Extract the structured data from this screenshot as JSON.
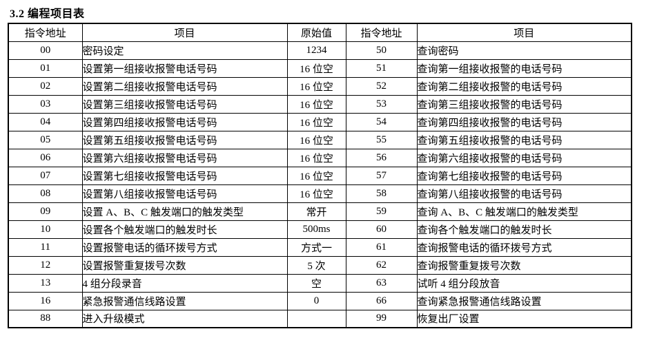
{
  "title": "3.2 编程项目表",
  "table": {
    "headers": [
      "指令地址",
      "项目",
      "原始值",
      "指令地址",
      "项目"
    ],
    "rows": [
      {
        "addr_l": "00",
        "item_l": "密码设定",
        "initial": "1234",
        "addr_r": "50",
        "item_r": "查询密码"
      },
      {
        "addr_l": "01",
        "item_l": "设置第一组接收报警电话号码",
        "initial": "16 位空",
        "addr_r": "51",
        "item_r": "查询第一组接收报警的电话号码"
      },
      {
        "addr_l": "02",
        "item_l": "设置第二组接收报警电话号码",
        "initial": "16 位空",
        "addr_r": "52",
        "item_r": "查询第二组接收报警的电话号码"
      },
      {
        "addr_l": "03",
        "item_l": "设置第三组接收报警电话号码",
        "initial": "16 位空",
        "addr_r": "53",
        "item_r": "查询第三组接收报警的电话号码"
      },
      {
        "addr_l": "04",
        "item_l": "设置第四组接收报警电话号码",
        "initial": "16 位空",
        "addr_r": "54",
        "item_r": "查询第四组接收报警的电话号码"
      },
      {
        "addr_l": "05",
        "item_l": "设置第五组接收报警电话号码",
        "initial": "16 位空",
        "addr_r": "55",
        "item_r": "查询第五组接收报警的电话号码"
      },
      {
        "addr_l": "06",
        "item_l": "设置第六组接收报警电话号码",
        "initial": "16 位空",
        "addr_r": "56",
        "item_r": "查询第六组接收报警的电话号码"
      },
      {
        "addr_l": "07",
        "item_l": "设置第七组接收报警电话号码",
        "initial": "16 位空",
        "addr_r": "57",
        "item_r": "查询第七组接收报警的电话号码"
      },
      {
        "addr_l": "08",
        "item_l": "设置第八组接收报警电话号码",
        "initial": "16 位空",
        "addr_r": "58",
        "item_r": "查询第八组接收报警的电话号码"
      },
      {
        "addr_l": "09",
        "item_l": "设置 A、B、C 触发端口的触发类型",
        "initial": "常开",
        "addr_r": "59",
        "item_r": "查询 A、B、C 触发端口的触发类型"
      },
      {
        "addr_l": "10",
        "item_l": "设置各个触发端口的触发时长",
        "initial": "500ms",
        "addr_r": "60",
        "item_r": "查询各个触发端口的触发时长"
      },
      {
        "addr_l": "11",
        "item_l": "设置报警电话的循环拨号方式",
        "initial": "方式一",
        "addr_r": "61",
        "item_r": "查询报警电话的循环拨号方式"
      },
      {
        "addr_l": "12",
        "item_l": "设置报警重复拨号次数",
        "initial": "5 次",
        "addr_r": "62",
        "item_r": "查询报警重复拨号次数"
      },
      {
        "addr_l": "13",
        "item_l": "4 组分段录音",
        "initial": "空",
        "addr_r": "63",
        "item_r": "试听 4 组分段放音"
      },
      {
        "addr_l": "16",
        "item_l": "紧急报警通信线路设置",
        "initial": "0",
        "addr_r": "66",
        "item_r": "查询紧急报警通信线路设置"
      },
      {
        "addr_l": "88",
        "item_l": "进入升级模式",
        "initial": "",
        "addr_r": "99",
        "item_r": "恢复出厂设置"
      }
    ]
  }
}
